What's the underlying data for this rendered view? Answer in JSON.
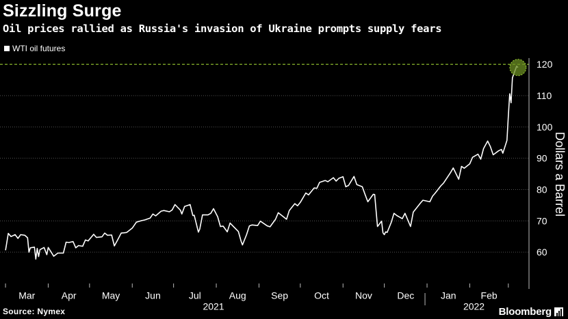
{
  "header": {
    "title": "Sizzling Surge",
    "subtitle": "Oil prices rallied as Russia's invasion of Ukraine prompts supply fears"
  },
  "footer": {
    "source": "Source: Nymex",
    "brand": "Bloomberg"
  },
  "colors": {
    "background": "#000000",
    "line": "#ffffff",
    "reference_line": "#9acd32",
    "highlight": "#6b8e23",
    "grid": "#555555"
  },
  "chart_data": {
    "type": "line",
    "title": "Sizzling Surge",
    "subtitle": "Oil prices rallied as Russia's invasion of Ukraine prompts supply fears",
    "xlabel": "",
    "ylabel": "Dollars a Barrel",
    "y_axis_side": "right",
    "ylim": [
      50,
      122
    ],
    "y_ticks": [
      60,
      70,
      80,
      90,
      100,
      110,
      120
    ],
    "grid": true,
    "legend_placement": "top-left",
    "legend": [
      "WTI oil futures"
    ],
    "x_ticks": [
      "Mar",
      "Apr",
      "May",
      "Jun",
      "Jul",
      "Aug",
      "Sep",
      "Oct",
      "Nov",
      "Dec",
      "Jan",
      "Feb"
    ],
    "x_year_labels": [
      "2021",
      "2022"
    ],
    "reference_line": {
      "y": 120,
      "style": "dashed"
    },
    "highlight_point": {
      "x": "2022-03-08",
      "y": 119
    },
    "series": [
      {
        "name": "WTI oil futures",
        "points": [
          [
            "2021-03-01",
            60.6
          ],
          [
            "2021-03-03",
            66.0
          ],
          [
            "2021-03-05",
            65.0
          ],
          [
            "2021-03-08",
            65.6
          ],
          [
            "2021-03-10",
            64.4
          ],
          [
            "2021-03-12",
            65.6
          ],
          [
            "2021-03-15",
            65.4
          ],
          [
            "2021-03-17",
            64.6
          ],
          [
            "2021-03-18",
            60.0
          ],
          [
            "2021-03-19",
            61.4
          ],
          [
            "2021-03-22",
            61.6
          ],
          [
            "2021-03-23",
            57.8
          ],
          [
            "2021-03-24",
            61.2
          ],
          [
            "2021-03-25",
            58.6
          ],
          [
            "2021-03-26",
            60.8
          ],
          [
            "2021-03-29",
            61.5
          ],
          [
            "2021-03-31",
            59.2
          ],
          [
            "2021-04-01",
            61.5
          ],
          [
            "2021-04-05",
            58.7
          ],
          [
            "2021-04-08",
            59.7
          ],
          [
            "2021-04-12",
            59.7
          ],
          [
            "2021-04-14",
            63.2
          ],
          [
            "2021-04-16",
            63.1
          ],
          [
            "2021-04-19",
            63.4
          ],
          [
            "2021-04-21",
            61.4
          ],
          [
            "2021-04-23",
            62.1
          ],
          [
            "2021-04-26",
            61.9
          ],
          [
            "2021-04-28",
            63.9
          ],
          [
            "2021-04-30",
            63.6
          ],
          [
            "2021-05-04",
            65.7
          ],
          [
            "2021-05-06",
            64.7
          ],
          [
            "2021-05-10",
            64.9
          ],
          [
            "2021-05-12",
            66.1
          ],
          [
            "2021-05-14",
            65.4
          ],
          [
            "2021-05-17",
            65.5
          ],
          [
            "2021-05-19",
            62.0
          ],
          [
            "2021-05-21",
            63.6
          ],
          [
            "2021-05-24",
            66.1
          ],
          [
            "2021-05-26",
            66.2
          ],
          [
            "2021-05-28",
            66.3
          ],
          [
            "2021-06-01",
            67.7
          ],
          [
            "2021-06-04",
            69.6
          ],
          [
            "2021-06-08",
            70.1
          ],
          [
            "2021-06-10",
            70.3
          ],
          [
            "2021-06-14",
            70.9
          ],
          [
            "2021-06-16",
            72.2
          ],
          [
            "2021-06-18",
            71.6
          ],
          [
            "2021-06-22",
            73.1
          ],
          [
            "2021-06-24",
            73.3
          ],
          [
            "2021-06-28",
            72.9
          ],
          [
            "2021-06-30",
            73.5
          ],
          [
            "2021-07-02",
            75.2
          ],
          [
            "2021-07-06",
            73.4
          ],
          [
            "2021-07-07",
            72.2
          ],
          [
            "2021-07-09",
            74.6
          ],
          [
            "2021-07-13",
            75.2
          ],
          [
            "2021-07-15",
            71.7
          ],
          [
            "2021-07-16",
            71.8
          ],
          [
            "2021-07-19",
            66.4
          ],
          [
            "2021-07-20",
            67.4
          ],
          [
            "2021-07-22",
            71.9
          ],
          [
            "2021-07-26",
            71.9
          ],
          [
            "2021-07-28",
            72.4
          ],
          [
            "2021-07-30",
            73.9
          ],
          [
            "2021-08-02",
            71.3
          ],
          [
            "2021-08-04",
            68.2
          ],
          [
            "2021-08-06",
            68.3
          ],
          [
            "2021-08-09",
            66.5
          ],
          [
            "2021-08-11",
            69.3
          ],
          [
            "2021-08-13",
            68.4
          ],
          [
            "2021-08-17",
            66.6
          ],
          [
            "2021-08-19",
            63.5
          ],
          [
            "2021-08-20",
            62.3
          ],
          [
            "2021-08-23",
            65.6
          ],
          [
            "2021-08-25",
            68.4
          ],
          [
            "2021-08-27",
            68.7
          ],
          [
            "2021-08-31",
            68.5
          ],
          [
            "2021-09-02",
            69.9
          ],
          [
            "2021-09-07",
            68.4
          ],
          [
            "2021-09-09",
            68.1
          ],
          [
            "2021-09-13",
            70.5
          ],
          [
            "2021-09-15",
            72.6
          ],
          [
            "2021-09-17",
            71.9
          ],
          [
            "2021-09-21",
            70.5
          ],
          [
            "2021-09-23",
            73.3
          ],
          [
            "2021-09-27",
            75.5
          ],
          [
            "2021-09-29",
            74.8
          ],
          [
            "2021-10-01",
            75.9
          ],
          [
            "2021-10-05",
            78.9
          ],
          [
            "2021-10-07",
            78.3
          ],
          [
            "2021-10-11",
            80.5
          ],
          [
            "2021-10-13",
            80.4
          ],
          [
            "2021-10-15",
            82.3
          ],
          [
            "2021-10-19",
            82.9
          ],
          [
            "2021-10-21",
            82.5
          ],
          [
            "2021-10-25",
            83.8
          ],
          [
            "2021-10-27",
            82.7
          ],
          [
            "2021-10-29",
            83.6
          ],
          [
            "2021-11-01",
            84.1
          ],
          [
            "2021-11-03",
            80.9
          ],
          [
            "2021-11-05",
            81.3
          ],
          [
            "2021-11-09",
            84.2
          ],
          [
            "2021-11-11",
            81.6
          ],
          [
            "2021-11-15",
            80.9
          ],
          [
            "2021-11-17",
            78.4
          ],
          [
            "2021-11-19",
            76.1
          ],
          [
            "2021-11-23",
            78.5
          ],
          [
            "2021-11-24",
            78.4
          ],
          [
            "2021-11-26",
            68.2
          ],
          [
            "2021-11-29",
            69.9
          ],
          [
            "2021-11-30",
            66.2
          ],
          [
            "2021-12-01",
            65.6
          ],
          [
            "2021-12-02",
            66.5
          ],
          [
            "2021-12-03",
            66.3
          ],
          [
            "2021-12-06",
            69.5
          ],
          [
            "2021-12-08",
            72.4
          ],
          [
            "2021-12-10",
            71.7
          ],
          [
            "2021-12-14",
            70.7
          ],
          [
            "2021-12-16",
            72.4
          ],
          [
            "2021-12-20",
            68.2
          ],
          [
            "2021-12-22",
            72.8
          ],
          [
            "2021-12-27",
            75.6
          ],
          [
            "2021-12-29",
            76.6
          ],
          [
            "2022-01-03",
            76.1
          ],
          [
            "2022-01-05",
            77.9
          ],
          [
            "2022-01-07",
            78.9
          ],
          [
            "2022-01-11",
            81.2
          ],
          [
            "2022-01-13",
            82.1
          ],
          [
            "2022-01-18",
            85.4
          ],
          [
            "2022-01-20",
            86.9
          ],
          [
            "2022-01-24",
            83.3
          ],
          [
            "2022-01-26",
            87.4
          ],
          [
            "2022-01-28",
            86.8
          ],
          [
            "2022-02-01",
            88.2
          ],
          [
            "2022-02-03",
            90.3
          ],
          [
            "2022-02-07",
            91.3
          ],
          [
            "2022-02-09",
            89.7
          ],
          [
            "2022-02-11",
            93.1
          ],
          [
            "2022-02-14",
            95.5
          ],
          [
            "2022-02-16",
            93.7
          ],
          [
            "2022-02-18",
            91.1
          ],
          [
            "2022-02-22",
            92.4
          ],
          [
            "2022-02-24",
            92.8
          ],
          [
            "2022-02-25",
            91.6
          ],
          [
            "2022-02-28",
            95.7
          ],
          [
            "2022-03-01",
            103.4
          ],
          [
            "2022-03-02",
            110.6
          ],
          [
            "2022-03-03",
            107.7
          ],
          [
            "2022-03-04",
            115.7
          ],
          [
            "2022-03-07",
            119.4
          ],
          [
            "2022-03-08",
            119.0
          ]
        ]
      }
    ]
  }
}
